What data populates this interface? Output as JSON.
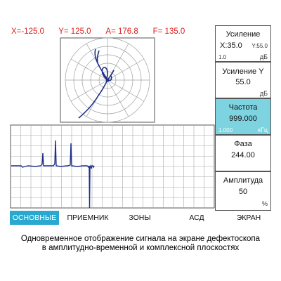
{
  "readout": {
    "x": "X=-125.0",
    "y": "Y= 125.0",
    "a": "A= 176.8",
    "f": "F= 135.0"
  },
  "panels": {
    "gain": {
      "title": "Усиление",
      "value": "X:35.0",
      "side_value": "Y:55.0",
      "min": "1.0",
      "unit": "дБ"
    },
    "gain_y": {
      "title": "Усиление Y",
      "value": "55.0",
      "unit": "дБ"
    },
    "frequency": {
      "title": "Частота",
      "value": "999.000",
      "min": "1.000",
      "unit": "кГц"
    },
    "phase": {
      "title": "Фаза",
      "value": "244.00"
    },
    "amplitude": {
      "title": "Амплитуда",
      "value": "50",
      "unit": "%"
    }
  },
  "tabs": [
    {
      "label": "ОСНОВНЫЕ",
      "active": true
    },
    {
      "label": "ПРИЕМНИК",
      "active": false
    },
    {
      "label": "ЗОНЫ",
      "active": false
    },
    {
      "label": "АСД",
      "active": false
    },
    {
      "label": "ЭКРАН",
      "active": false
    }
  ],
  "caption": {
    "line1": "Одновременное отображение сигнала на экране дефектоскопа",
    "line2": "в амплитудно-временной и  комплексной плоскостях"
  },
  "colors": {
    "readout": "#d8221c",
    "trace": "#1f2f8a",
    "grid": "#9a9a9a",
    "active_panel": "#7ed3e0",
    "active_tab": "#29a9cf"
  }
}
